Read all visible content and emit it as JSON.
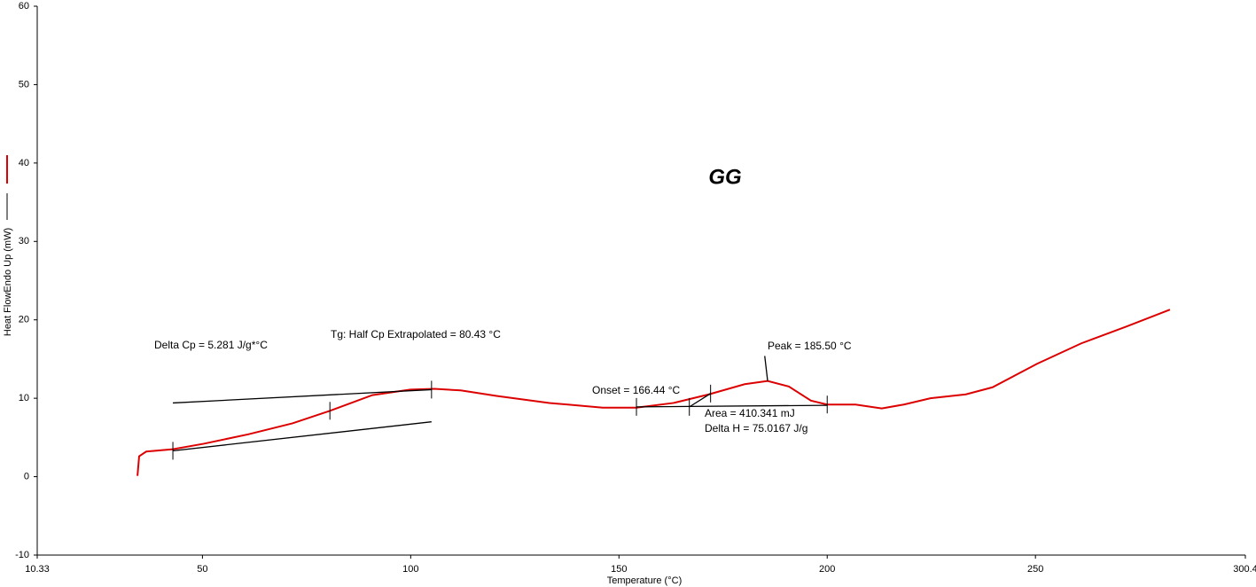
{
  "chart_data": {
    "type": "line",
    "title": "GG",
    "x_label": "Temperature (°C)",
    "y_label": "Heat FlowEndo Up (mW)",
    "xlim": [
      10.33,
      300.4
    ],
    "ylim": [
      -10,
      60
    ],
    "xticks": [
      10.33,
      50,
      100,
      150,
      200,
      250,
      300.4
    ],
    "yticks": [
      -10,
      0,
      10,
      20,
      30,
      40,
      50,
      60
    ],
    "series": [
      {
        "color": "#dd0000",
        "x": [
          34.4,
          34.8,
          36.5,
          42.9,
          50.3,
          61.0,
          71.6,
          80.6,
          90.8,
          99.9,
          105.7,
          112.0,
          120.6,
          133.3,
          146.1,
          154.2,
          163.1,
          171.6,
          180.2,
          185.7,
          190.8,
          196.1,
          200.0,
          206.8,
          213.1,
          218.4,
          224.8,
          233.3,
          239.7,
          250.4,
          261.0,
          271.6,
          282.3
        ],
        "values": [
          0.1,
          2.6,
          3.2,
          3.5,
          4.2,
          5.4,
          6.8,
          8.4,
          10.4,
          11.1,
          11.2,
          11.0,
          10.3,
          9.4,
          8.8,
          8.8,
          9.4,
          10.5,
          11.8,
          12.2,
          11.5,
          9.7,
          9.2,
          9.2,
          8.7,
          9.2,
          10.0,
          10.5,
          11.4,
          14.4,
          17.0,
          19.1,
          21.3
        ]
      },
      {
        "color": "#000000",
        "x": [
          42.9,
          105.0
        ],
        "values": [
          9.4,
          11.1
        ]
      },
      {
        "color": "#000000",
        "x": [
          42.9,
          105.0
        ],
        "values": [
          3.3,
          7.0
        ]
      },
      {
        "color": "#000000",
        "x": [
          154.2,
          200.0
        ],
        "values": [
          8.9,
          9.1
        ]
      },
      {
        "color": "#000000",
        "x": [
          166.9,
          172.0
        ],
        "values": [
          8.9,
          10.6
        ]
      },
      {
        "color": "#000000",
        "x": [
          185.0,
          185.7
        ],
        "values": [
          15.4,
          12.2
        ]
      }
    ],
    "limits": [
      {
        "x": 42.9,
        "y": 3.3
      },
      {
        "x": 80.6,
        "y": 8.4
      },
      {
        "x": 105.0,
        "y": 11.1
      },
      {
        "x": 154.2,
        "y": 8.9
      },
      {
        "x": 166.9,
        "y": 8.9
      },
      {
        "x": 172.0,
        "y": 10.6
      },
      {
        "x": 200.0,
        "y": 9.2
      }
    ],
    "annotations": [
      "Delta Cp = 5.281 J/g*°C",
      "Tg: Half Cp Extrapolated = 80.43 °C",
      "Onset = 166.44 °C",
      "Peak = 185.50 °C",
      "Area = 410.341 mJ",
      "Delta H = 75.0167 J/g"
    ]
  }
}
